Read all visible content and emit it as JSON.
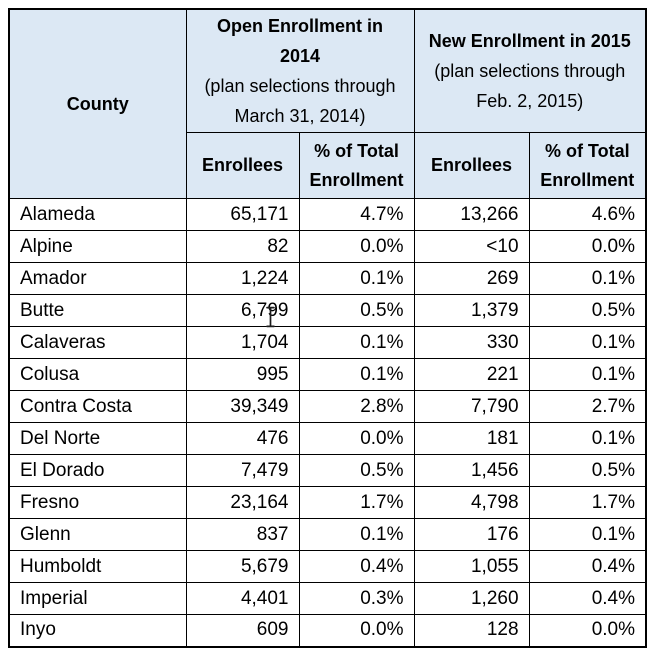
{
  "document": {
    "header": {
      "county_label": "County",
      "open_2014": {
        "title": "Open Enrollment in 2014",
        "subtitle": "(plan selections through March 31, 2014)"
      },
      "new_2015": {
        "title": "New Enrollment in 2015",
        "subtitle": "(plan selections through Feb. 2, 2015)"
      },
      "enrollees_label": "Enrollees",
      "pct_label": "% of Total Enrollment"
    },
    "rows": [
      {
        "county": "Alameda",
        "enrollees_2014": "65,171",
        "pct_2014": "4.7%",
        "enrollees_2015": "13,266",
        "pct_2015": "4.6%"
      },
      {
        "county": "Alpine",
        "enrollees_2014": "82",
        "pct_2014": "0.0%",
        "enrollees_2015": "<10",
        "pct_2015": "0.0%"
      },
      {
        "county": "Amador",
        "enrollees_2014": "1,224",
        "pct_2014": "0.1%",
        "enrollees_2015": "269",
        "pct_2015": "0.1%"
      },
      {
        "county": "Butte",
        "enrollees_2014": "6,799",
        "pct_2014": "0.5%",
        "enrollees_2015": "1,379",
        "pct_2015": "0.5%"
      },
      {
        "county": "Calaveras",
        "enrollees_2014": "1,704",
        "pct_2014": "0.1%",
        "enrollees_2015": "330",
        "pct_2015": "0.1%"
      },
      {
        "county": "Colusa",
        "enrollees_2014": "995",
        "pct_2014": "0.1%",
        "enrollees_2015": "221",
        "pct_2015": "0.1%"
      },
      {
        "county": "Contra Costa",
        "enrollees_2014": "39,349",
        "pct_2014": "2.8%",
        "enrollees_2015": "7,790",
        "pct_2015": "2.7%"
      },
      {
        "county": "Del Norte",
        "enrollees_2014": "476",
        "pct_2014": "0.0%",
        "enrollees_2015": "181",
        "pct_2015": "0.1%"
      },
      {
        "county": "El Dorado",
        "enrollees_2014": "7,479",
        "pct_2014": "0.5%",
        "enrollees_2015": "1,456",
        "pct_2015": "0.5%"
      },
      {
        "county": "Fresno",
        "enrollees_2014": "23,164",
        "pct_2014": "1.7%",
        "enrollees_2015": "4,798",
        "pct_2015": "1.7%"
      },
      {
        "county": "Glenn",
        "enrollees_2014": "837",
        "pct_2014": "0.1%",
        "enrollees_2015": "176",
        "pct_2015": "0.1%"
      },
      {
        "county": "Humboldt",
        "enrollees_2014": "5,679",
        "pct_2014": "0.4%",
        "enrollees_2015": "1,055",
        "pct_2015": "0.4%"
      },
      {
        "county": "Imperial",
        "enrollees_2014": "4,401",
        "pct_2014": "0.3%",
        "enrollees_2015": "1,260",
        "pct_2015": "0.4%"
      },
      {
        "county": "Inyo",
        "enrollees_2014": "609",
        "pct_2014": "0.0%",
        "enrollees_2015": "128",
        "pct_2015": "0.0%"
      }
    ],
    "colors": {
      "header_bg": "#dce8f4",
      "border": "#000000",
      "text": "#000000"
    },
    "cursor": "text-ibeam"
  }
}
